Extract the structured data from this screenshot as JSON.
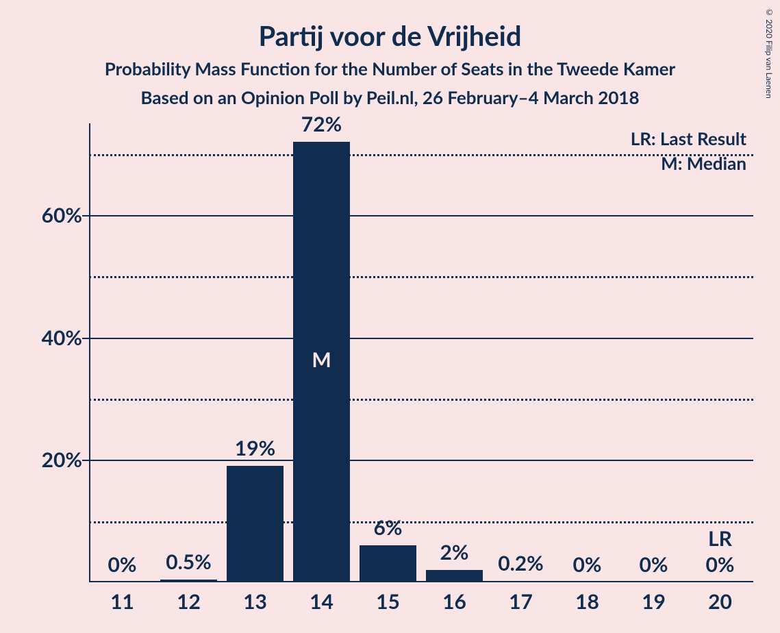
{
  "chart": {
    "type": "bar",
    "title": "Partij voor de Vrijheid",
    "subtitle1": "Probability Mass Function for the Number of Seats in the Tweede Kamer",
    "subtitle2": "Based on an Opinion Poll by Peil.nl, 26 February–4 March 2018",
    "copyright": "© 2020 Filip van Laenen",
    "background_color": "#f9e5e6",
    "text_color": "#102d50",
    "bar_color": "#102d50",
    "axis_color": "#102d50",
    "grid_major_color": "#102d50",
    "grid_minor_color": "#102d50",
    "bar_annotation_color": "#f9e5e6",
    "title_fontsize": 40,
    "subtitle_fontsize": 26,
    "label_fontsize": 30,
    "legend_fontsize": 26,
    "ylim_max": 75,
    "y_major_ticks": [
      20,
      40,
      60
    ],
    "y_minor_ticks": [
      10,
      30,
      50,
      70
    ],
    "y_tick_labels": [
      "20%",
      "40%",
      "60%"
    ],
    "categories": [
      "11",
      "12",
      "13",
      "14",
      "15",
      "16",
      "17",
      "18",
      "19",
      "20"
    ],
    "values": [
      0,
      0.5,
      19,
      72,
      6,
      2,
      0.2,
      0,
      0,
      0
    ],
    "value_labels": [
      "0%",
      "0.5%",
      "19%",
      "72%",
      "6%",
      "2%",
      "0.2%",
      "0%",
      "0%",
      "0%"
    ],
    "median_index": 3,
    "median_label": "M",
    "lr_index": 9,
    "lr_label": "LR",
    "legend_lr": "LR: Last Result",
    "legend_m": "M: Median",
    "bar_width_ratio": 0.85
  }
}
